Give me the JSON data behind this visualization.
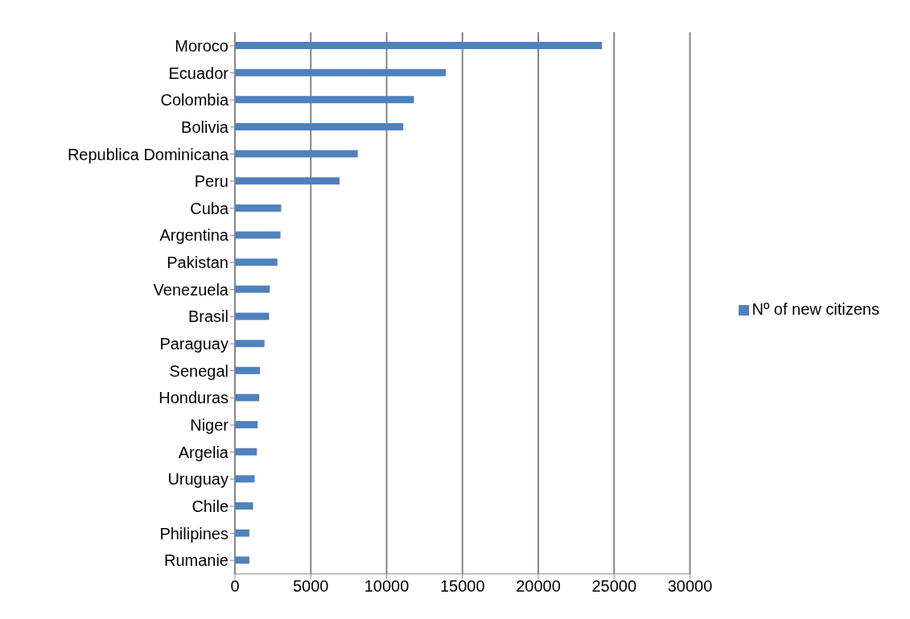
{
  "chart_data": {
    "type": "bar",
    "orientation": "horizontal",
    "categories": [
      "Moroco",
      "Ecuador",
      "Colombia",
      "Bolivia",
      "Republica Dominicana",
      "Peru",
      "Cuba",
      "Argentina",
      "Pakistan",
      "Venezuela",
      "Brasil",
      "Paraguay",
      "Senegal",
      "Honduras",
      "Niger",
      "Argelia",
      "Uruguay",
      "Chile",
      "Philipines",
      "Rumanie"
    ],
    "series": [
      {
        "name": "Nº of new citizens",
        "color": "#4f81bd",
        "values": [
          24200,
          13900,
          11800,
          11100,
          8100,
          6900,
          3050,
          3000,
          2800,
          2300,
          2250,
          1950,
          1650,
          1600,
          1500,
          1450,
          1300,
          1200,
          950,
          950
        ]
      }
    ],
    "xlim": [
      0,
      30000
    ],
    "xticks": [
      0,
      5000,
      10000,
      15000,
      20000,
      25000,
      30000
    ],
    "grid": "x",
    "legend": "right"
  }
}
